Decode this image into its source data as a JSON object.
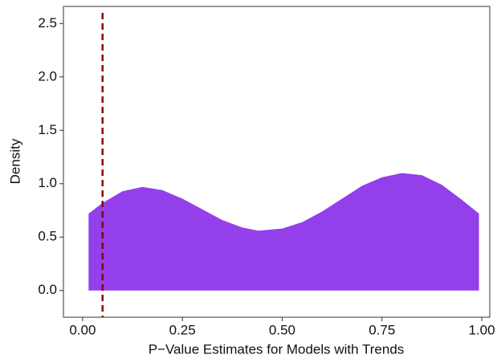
{
  "chart_data": {
    "type": "area",
    "x_label": "P−Value Estimates for Models with Trends",
    "y_label": "Density",
    "x": [
      0.015,
      0.05,
      0.1,
      0.15,
      0.2,
      0.25,
      0.3,
      0.35,
      0.4,
      0.44,
      0.5,
      0.55,
      0.6,
      0.65,
      0.7,
      0.75,
      0.8,
      0.85,
      0.9,
      0.95,
      0.993
    ],
    "values": [
      0.72,
      0.82,
      0.93,
      0.97,
      0.94,
      0.86,
      0.76,
      0.66,
      0.59,
      0.56,
      0.58,
      0.64,
      0.74,
      0.86,
      0.98,
      1.06,
      1.1,
      1.08,
      0.99,
      0.85,
      0.72
    ],
    "color": "#9340eb",
    "vline": 0.05,
    "vline_color": "#8b0000",
    "xlim": [
      -0.048,
      1.02
    ],
    "ylim": [
      -0.25,
      2.66
    ],
    "xticks": [
      {
        "value": 0,
        "label": "0.00"
      },
      {
        "value": 0.25,
        "label": "0.25"
      },
      {
        "value": 0.5,
        "label": "0.50"
      },
      {
        "value": 0.75,
        "label": "0.75"
      },
      {
        "value": 1,
        "label": "1.00"
      }
    ],
    "yticks": [
      {
        "value": 0,
        "label": "0.0"
      },
      {
        "value": 0.5,
        "label": "0.5"
      },
      {
        "value": 1,
        "label": "1.0"
      },
      {
        "value": 1.5,
        "label": "1.5"
      },
      {
        "value": 2,
        "label": "2.0"
      },
      {
        "value": 2.5,
        "label": "2.5"
      }
    ],
    "grid": false
  }
}
